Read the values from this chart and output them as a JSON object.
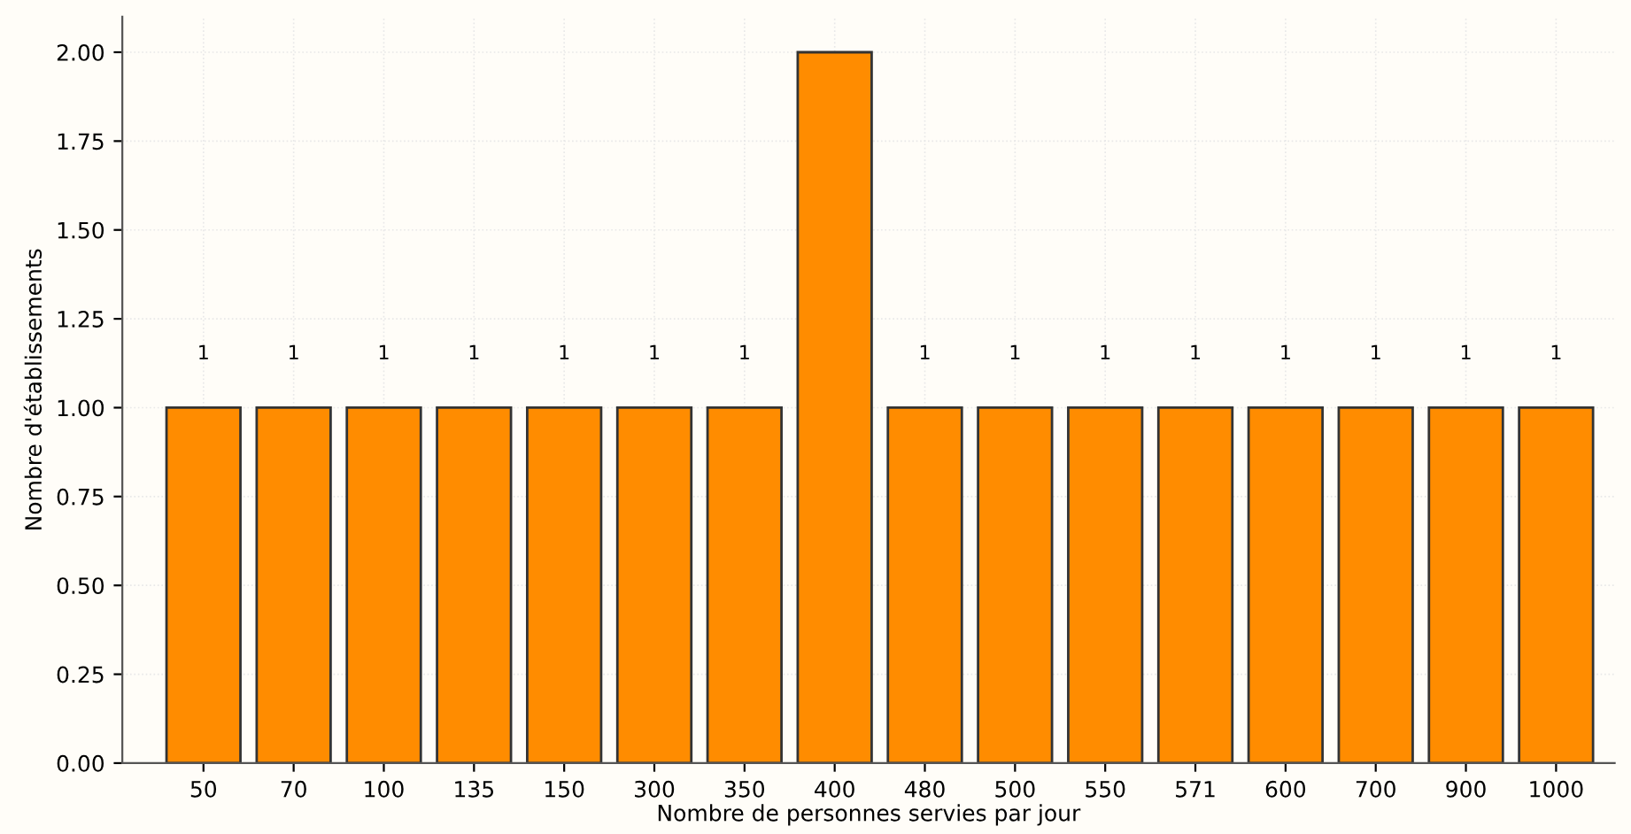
{
  "chart_data": {
    "type": "bar",
    "xlabel": "Nombre de personnes servies par jour",
    "ylabel": "Nombre d'établissements",
    "categories": [
      "50",
      "70",
      "100",
      "135",
      "150",
      "300",
      "350",
      "400",
      "480",
      "500",
      "550",
      "571",
      "600",
      "700",
      "900",
      "1000"
    ],
    "values": [
      1,
      1,
      1,
      1,
      1,
      1,
      1,
      2,
      1,
      1,
      1,
      1,
      1,
      1,
      1,
      1
    ],
    "value_labels": [
      "1",
      "1",
      "1",
      "1",
      "1",
      "1",
      "1",
      null,
      "1",
      "1",
      "1",
      "1",
      "1",
      "1",
      "1",
      "1"
    ],
    "color": "#ff8c00",
    "ylim": [
      0,
      2.1
    ],
    "yticks": [
      {
        "value": 0,
        "label": "0.00"
      },
      {
        "value": 0.25,
        "label": "0.25"
      },
      {
        "value": 0.5,
        "label": "0.50"
      },
      {
        "value": 0.75,
        "label": "0.75"
      },
      {
        "value": 1,
        "label": "1.00"
      },
      {
        "value": 1.25,
        "label": "1.25"
      },
      {
        "value": 1.5,
        "label": "1.50"
      },
      {
        "value": 1.75,
        "label": "1.75"
      },
      {
        "value": 2,
        "label": "2.00"
      }
    ],
    "grid": true
  }
}
